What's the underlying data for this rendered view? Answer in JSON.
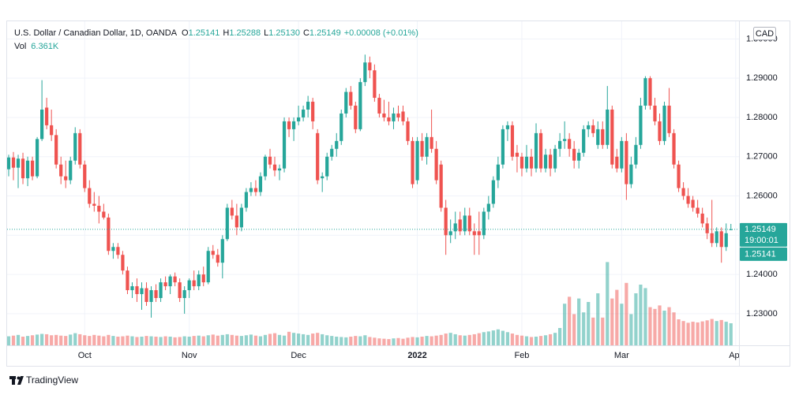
{
  "chart_data": {
    "type": "candlestick",
    "legend": {
      "title": "U.S. Dollar / Canadian Dollar, 1D, OANDA",
      "ohlc_keys": [
        "O",
        "H",
        "L",
        "C"
      ],
      "ohlc_labels": [
        "1.25141",
        "1.25288",
        "1.25130",
        "1.25149"
      ],
      "change": "+0.00008 (+0.01%)",
      "vol_key": "Vol",
      "vol_label": "6.361K"
    },
    "currency": "CAD",
    "last_price": {
      "value": 1.25149,
      "label": "1.25149"
    },
    "countdown": "19:00:01",
    "bid_label": "1.25141",
    "brand": "TradingView",
    "up_color": "#26a69a",
    "down_color": "#ef5350",
    "grid": true,
    "xlim": [
      -0.33,
      153.7
    ],
    "xticks": [
      {
        "value": 16,
        "label": "Oct"
      },
      {
        "value": 38,
        "label": "Nov"
      },
      {
        "value": 61,
        "label": "Dec"
      },
      {
        "value": 86,
        "label": "2022"
      },
      {
        "value": 108,
        "label": "Feb"
      },
      {
        "value": 129,
        "label": "Mar"
      },
      {
        "value": 153,
        "label": "Apr"
      }
    ],
    "ylim": [
      1.22195,
      1.30449
    ],
    "yticks": [
      {
        "value": 1.23,
        "label": "1.23000"
      },
      {
        "value": 1.24,
        "label": "1.24000"
      },
      {
        "value": 1.25,
        "label": "1.25000"
      },
      {
        "value": 1.26,
        "label": "1.26000"
      },
      {
        "value": 1.27,
        "label": "1.27000"
      },
      {
        "value": 1.28,
        "label": "1.28000"
      },
      {
        "value": 1.29,
        "label": "1.29000"
      },
      {
        "value": 1.3,
        "label": "1.30000"
      }
    ],
    "vlim": [
      0,
      30
    ],
    "ohlc": [
      [
        1.2668,
        1.2705,
        1.265,
        1.2698
      ],
      [
        1.2698,
        1.2712,
        1.264,
        1.2672
      ],
      [
        1.2672,
        1.2705,
        1.262,
        1.2695
      ],
      [
        1.2695,
        1.271,
        1.263,
        1.2645
      ],
      [
        1.2645,
        1.27,
        1.2625,
        1.269
      ],
      [
        1.269,
        1.27,
        1.264,
        1.265
      ],
      [
        1.265,
        1.275,
        1.2645,
        1.2745
      ],
      [
        1.2745,
        1.2895,
        1.274,
        1.282
      ],
      [
        1.2825,
        1.285,
        1.277,
        1.278
      ],
      [
        1.278,
        1.282,
        1.274,
        1.2755
      ],
      [
        1.2755,
        1.277,
        1.267,
        1.268
      ],
      [
        1.268,
        1.27,
        1.263,
        1.265
      ],
      [
        1.265,
        1.269,
        1.262,
        1.264
      ],
      [
        1.264,
        1.27,
        1.263,
        1.269
      ],
      [
        1.269,
        1.2775,
        1.268,
        1.276
      ],
      [
        1.276,
        1.277,
        1.267,
        1.268
      ],
      [
        1.268,
        1.269,
        1.261,
        1.262
      ],
      [
        1.262,
        1.264,
        1.257,
        1.258
      ],
      [
        1.258,
        1.261,
        1.256,
        1.2575
      ],
      [
        1.2575,
        1.26,
        1.253,
        1.256
      ],
      [
        1.256,
        1.258,
        1.254,
        1.2545
      ],
      [
        1.2545,
        1.2555,
        1.245,
        1.246
      ],
      [
        1.246,
        1.248,
        1.244,
        1.247
      ],
      [
        1.247,
        1.248,
        1.244,
        1.245
      ],
      [
        1.245,
        1.246,
        1.24,
        1.241
      ],
      [
        1.241,
        1.242,
        1.235,
        1.236
      ],
      [
        1.236,
        1.238,
        1.234,
        1.237
      ],
      [
        1.237,
        1.239,
        1.233,
        1.235
      ],
      [
        1.235,
        1.238,
        1.231,
        1.2365
      ],
      [
        1.2365,
        1.238,
        1.232,
        1.233
      ],
      [
        1.233,
        1.237,
        1.229,
        1.236
      ],
      [
        1.236,
        1.2375,
        1.233,
        1.234
      ],
      [
        1.234,
        1.239,
        1.233,
        1.238
      ],
      [
        1.238,
        1.2395,
        1.236,
        1.237
      ],
      [
        1.237,
        1.24,
        1.235,
        1.2395
      ],
      [
        1.2395,
        1.2405,
        1.237,
        1.238
      ],
      [
        1.238,
        1.239,
        1.233,
        1.234
      ],
      [
        1.234,
        1.237,
        1.23,
        1.236
      ],
      [
        1.236,
        1.239,
        1.234,
        1.2385
      ],
      [
        1.2385,
        1.241,
        1.236,
        1.237
      ],
      [
        1.237,
        1.241,
        1.236,
        1.24
      ],
      [
        1.24,
        1.242,
        1.237,
        1.238
      ],
      [
        1.238,
        1.247,
        1.2375,
        1.246
      ],
      [
        1.246,
        1.2475,
        1.244,
        1.245
      ],
      [
        1.245,
        1.2465,
        1.242,
        1.243
      ],
      [
        1.243,
        1.25,
        1.239,
        1.249
      ],
      [
        1.249,
        1.258,
        1.2485,
        1.257
      ],
      [
        1.257,
        1.259,
        1.254,
        1.255
      ],
      [
        1.255,
        1.258,
        1.25,
        1.252
      ],
      [
        1.252,
        1.258,
        1.251,
        1.257
      ],
      [
        1.257,
        1.262,
        1.256,
        1.261
      ],
      [
        1.261,
        1.2635,
        1.26,
        1.262
      ],
      [
        1.262,
        1.264,
        1.26,
        1.261
      ],
      [
        1.261,
        1.266,
        1.26,
        1.265
      ],
      [
        1.265,
        1.2705,
        1.264,
        1.27
      ],
      [
        1.27,
        1.272,
        1.267,
        1.268
      ],
      [
        1.268,
        1.27,
        1.265,
        1.2665
      ],
      [
        1.2665,
        1.268,
        1.264,
        1.267
      ],
      [
        1.267,
        1.28,
        1.266,
        1.279
      ],
      [
        1.279,
        1.28,
        1.275,
        1.277
      ],
      [
        1.277,
        1.28,
        1.274,
        1.279
      ],
      [
        1.279,
        1.283,
        1.278,
        1.28
      ],
      [
        1.28,
        1.283,
        1.279,
        1.282
      ],
      [
        1.282,
        1.2855,
        1.28,
        1.284
      ],
      [
        1.284,
        1.285,
        1.277,
        1.279
      ],
      [
        1.276,
        1.277,
        1.263,
        1.264
      ],
      [
        1.2645,
        1.266,
        1.261,
        1.265
      ],
      [
        1.265,
        1.271,
        1.264,
        1.27
      ],
      [
        1.27,
        1.273,
        1.269,
        1.272
      ],
      [
        1.272,
        1.276,
        1.27,
        1.274
      ],
      [
        1.274,
        1.282,
        1.273,
        1.281
      ],
      [
        1.281,
        1.2875,
        1.28,
        1.2865
      ],
      [
        1.2865,
        1.288,
        1.282,
        1.283
      ],
      [
        1.283,
        1.284,
        1.276,
        1.277
      ],
      [
        1.277,
        1.29,
        1.2765,
        1.289
      ],
      [
        1.289,
        1.296,
        1.288,
        1.294
      ],
      [
        1.294,
        1.2955,
        1.29,
        1.292
      ],
      [
        1.292,
        1.2935,
        1.284,
        1.285
      ],
      [
        1.285,
        1.286,
        1.28,
        1.281
      ],
      [
        1.281,
        1.2845,
        1.279,
        1.28
      ],
      [
        1.28,
        1.284,
        1.278,
        1.279
      ],
      [
        1.279,
        1.2825,
        1.277,
        1.281
      ],
      [
        1.281,
        1.283,
        1.279,
        1.28
      ],
      [
        1.2815,
        1.283,
        1.278,
        1.279
      ],
      [
        1.279,
        1.28,
        1.273,
        1.274
      ],
      [
        1.274,
        1.275,
        1.262,
        1.263
      ],
      [
        1.264,
        1.275,
        1.263,
        1.274
      ],
      [
        1.274,
        1.276,
        1.269,
        1.27
      ],
      [
        1.27,
        1.276,
        1.268,
        1.275
      ],
      [
        1.275,
        1.282,
        1.271,
        1.272
      ],
      [
        1.272,
        1.274,
        1.263,
        1.264
      ],
      [
        1.268,
        1.269,
        1.256,
        1.257
      ],
      [
        1.257,
        1.259,
        1.245,
        1.25
      ],
      [
        1.25,
        1.254,
        1.248,
        1.251
      ],
      [
        1.251,
        1.256,
        1.249,
        1.253
      ],
      [
        1.254,
        1.256,
        1.25,
        1.251
      ],
      [
        1.251,
        1.257,
        1.25,
        1.255
      ],
      [
        1.255,
        1.257,
        1.25,
        1.251
      ],
      [
        1.251,
        1.253,
        1.245,
        1.25
      ],
      [
        1.251,
        1.256,
        1.245,
        1.25
      ],
      [
        1.25,
        1.257,
        1.249,
        1.256
      ],
      [
        1.256,
        1.26,
        1.254,
        1.258
      ],
      [
        1.258,
        1.265,
        1.257,
        1.264
      ],
      [
        1.264,
        1.27,
        1.262,
        1.268
      ],
      [
        1.268,
        1.278,
        1.267,
        1.277
      ],
      [
        1.277,
        1.279,
        1.274,
        1.278
      ],
      [
        1.278,
        1.279,
        1.269,
        1.27
      ],
      [
        1.271,
        1.273,
        1.266,
        1.27
      ],
      [
        1.27,
        1.271,
        1.265,
        1.267
      ],
      [
        1.267,
        1.273,
        1.266,
        1.27
      ],
      [
        1.27,
        1.272,
        1.265,
        1.267
      ],
      [
        1.267,
        1.2785,
        1.266,
        1.276
      ],
      [
        1.276,
        1.277,
        1.266,
        1.267
      ],
      [
        1.267,
        1.272,
        1.266,
        1.2705
      ],
      [
        1.2705,
        1.272,
        1.265,
        1.267
      ],
      [
        1.267,
        1.273,
        1.266,
        1.272
      ],
      [
        1.272,
        1.276,
        1.27,
        1.274
      ],
      [
        1.274,
        1.279,
        1.272,
        1.2745
      ],
      [
        1.2745,
        1.276,
        1.27,
        1.272
      ],
      [
        1.272,
        1.274,
        1.267,
        1.269
      ],
      [
        1.269,
        1.272,
        1.267,
        1.271
      ],
      [
        1.271,
        1.278,
        1.27,
        1.277
      ],
      [
        1.277,
        1.279,
        1.275,
        1.278
      ],
      [
        1.278,
        1.2795,
        1.275,
        1.276
      ],
      [
        1.273,
        1.279,
        1.272,
        1.277
      ],
      [
        1.277,
        1.279,
        1.272,
        1.273
      ],
      [
        1.273,
        1.288,
        1.272,
        1.282
      ],
      [
        1.282,
        1.283,
        1.267,
        1.268
      ],
      [
        1.27,
        1.272,
        1.266,
        1.267
      ],
      [
        1.267,
        1.275,
        1.266,
        1.274
      ],
      [
        1.274,
        1.276,
        1.259,
        1.263
      ],
      [
        1.263,
        1.27,
        1.262,
        1.268
      ],
      [
        1.268,
        1.275,
        1.267,
        1.273
      ],
      [
        1.273,
        1.285,
        1.272,
        1.283
      ],
      [
        1.283,
        1.2905,
        1.282,
        1.29
      ],
      [
        1.29,
        1.2905,
        1.282,
        1.283
      ],
      [
        1.283,
        1.285,
        1.278,
        1.279
      ],
      [
        1.279,
        1.281,
        1.273,
        1.274
      ],
      [
        1.274,
        1.284,
        1.273,
        1.283
      ],
      [
        1.283,
        1.2875,
        1.275,
        1.276
      ],
      [
        1.276,
        1.277,
        1.267,
        1.268
      ],
      [
        1.268,
        1.269,
        1.261,
        1.262
      ],
      [
        1.262,
        1.2635,
        1.259,
        1.26
      ],
      [
        1.26,
        1.262,
        1.257,
        1.258
      ],
      [
        1.259,
        1.26,
        1.256,
        1.257
      ],
      [
        1.257,
        1.259,
        1.2545,
        1.2555
      ],
      [
        1.2555,
        1.257,
        1.252,
        1.253
      ],
      [
        1.253,
        1.2545,
        1.249,
        1.2505
      ],
      [
        1.2505,
        1.259,
        1.247,
        1.248
      ],
      [
        1.248,
        1.252,
        1.247,
        1.251
      ],
      [
        1.251,
        1.252,
        1.243,
        1.247
      ],
      [
        1.247,
        1.253,
        1.246,
        1.2505
      ],
      [
        1.25141,
        1.25288,
        1.2513,
        1.25149
      ]
    ],
    "volume": [
      2.6,
      2.8,
      3.0,
      2.5,
      2.7,
      2.9,
      3.1,
      3.3,
      3.2,
      2.9,
      3.0,
      2.8,
      2.7,
      3.1,
      3.5,
      3.2,
      2.9,
      2.7,
      3.0,
      2.8,
      2.6,
      3.0,
      2.7,
      2.5,
      2.6,
      2.8,
      2.6,
      2.4,
      2.5,
      2.7,
      2.6,
      2.5,
      2.4,
      2.6,
      2.5,
      2.3,
      2.4,
      2.6,
      2.5,
      2.7,
      2.8,
      2.6,
      2.9,
      3.1,
      2.8,
      3.0,
      3.2,
      3.0,
      2.8,
      2.7,
      2.9,
      3.1,
      2.8,
      2.6,
      3.0,
      3.3,
      3.5,
      3.0,
      2.8,
      3.9,
      3.6,
      3.4,
      3.2,
      3.0,
      3.4,
      3.6,
      3.2,
      2.9,
      2.7,
      2.5,
      2.4,
      2.3,
      2.5,
      2.7,
      2.6,
      2.9,
      2.4,
      2.2,
      2.0,
      1.9,
      1.8,
      2.0,
      2.1,
      1.9,
      2.2,
      2.4,
      2.3,
      2.5,
      2.7,
      2.6,
      2.8,
      3.0,
      3.4,
      3.6,
      3.2,
      2.9,
      2.8,
      3.0,
      3.2,
      3.5,
      3.8,
      4.0,
      4.3,
      4.6,
      4.2,
      3.8,
      3.4,
      3.0,
      2.8,
      2.6,
      2.4,
      2.5,
      2.7,
      2.9,
      3.2,
      3.6,
      5.0,
      12.0,
      14.0,
      9.0,
      13.5,
      9.5,
      12.5,
      8.0,
      15.0,
      8.0,
      24.0,
      13.5,
      16.0,
      12.0,
      18.0,
      9.0,
      15.0,
      17.5,
      16.5,
      11.0,
      10.5,
      11.5,
      10.0,
      11.0,
      9.5,
      7.5,
      7.0,
      6.5,
      6.8,
      6.6,
      6.9,
      7.2,
      7.6,
      7.0,
      7.3,
      6.8,
      6.361
    ]
  }
}
